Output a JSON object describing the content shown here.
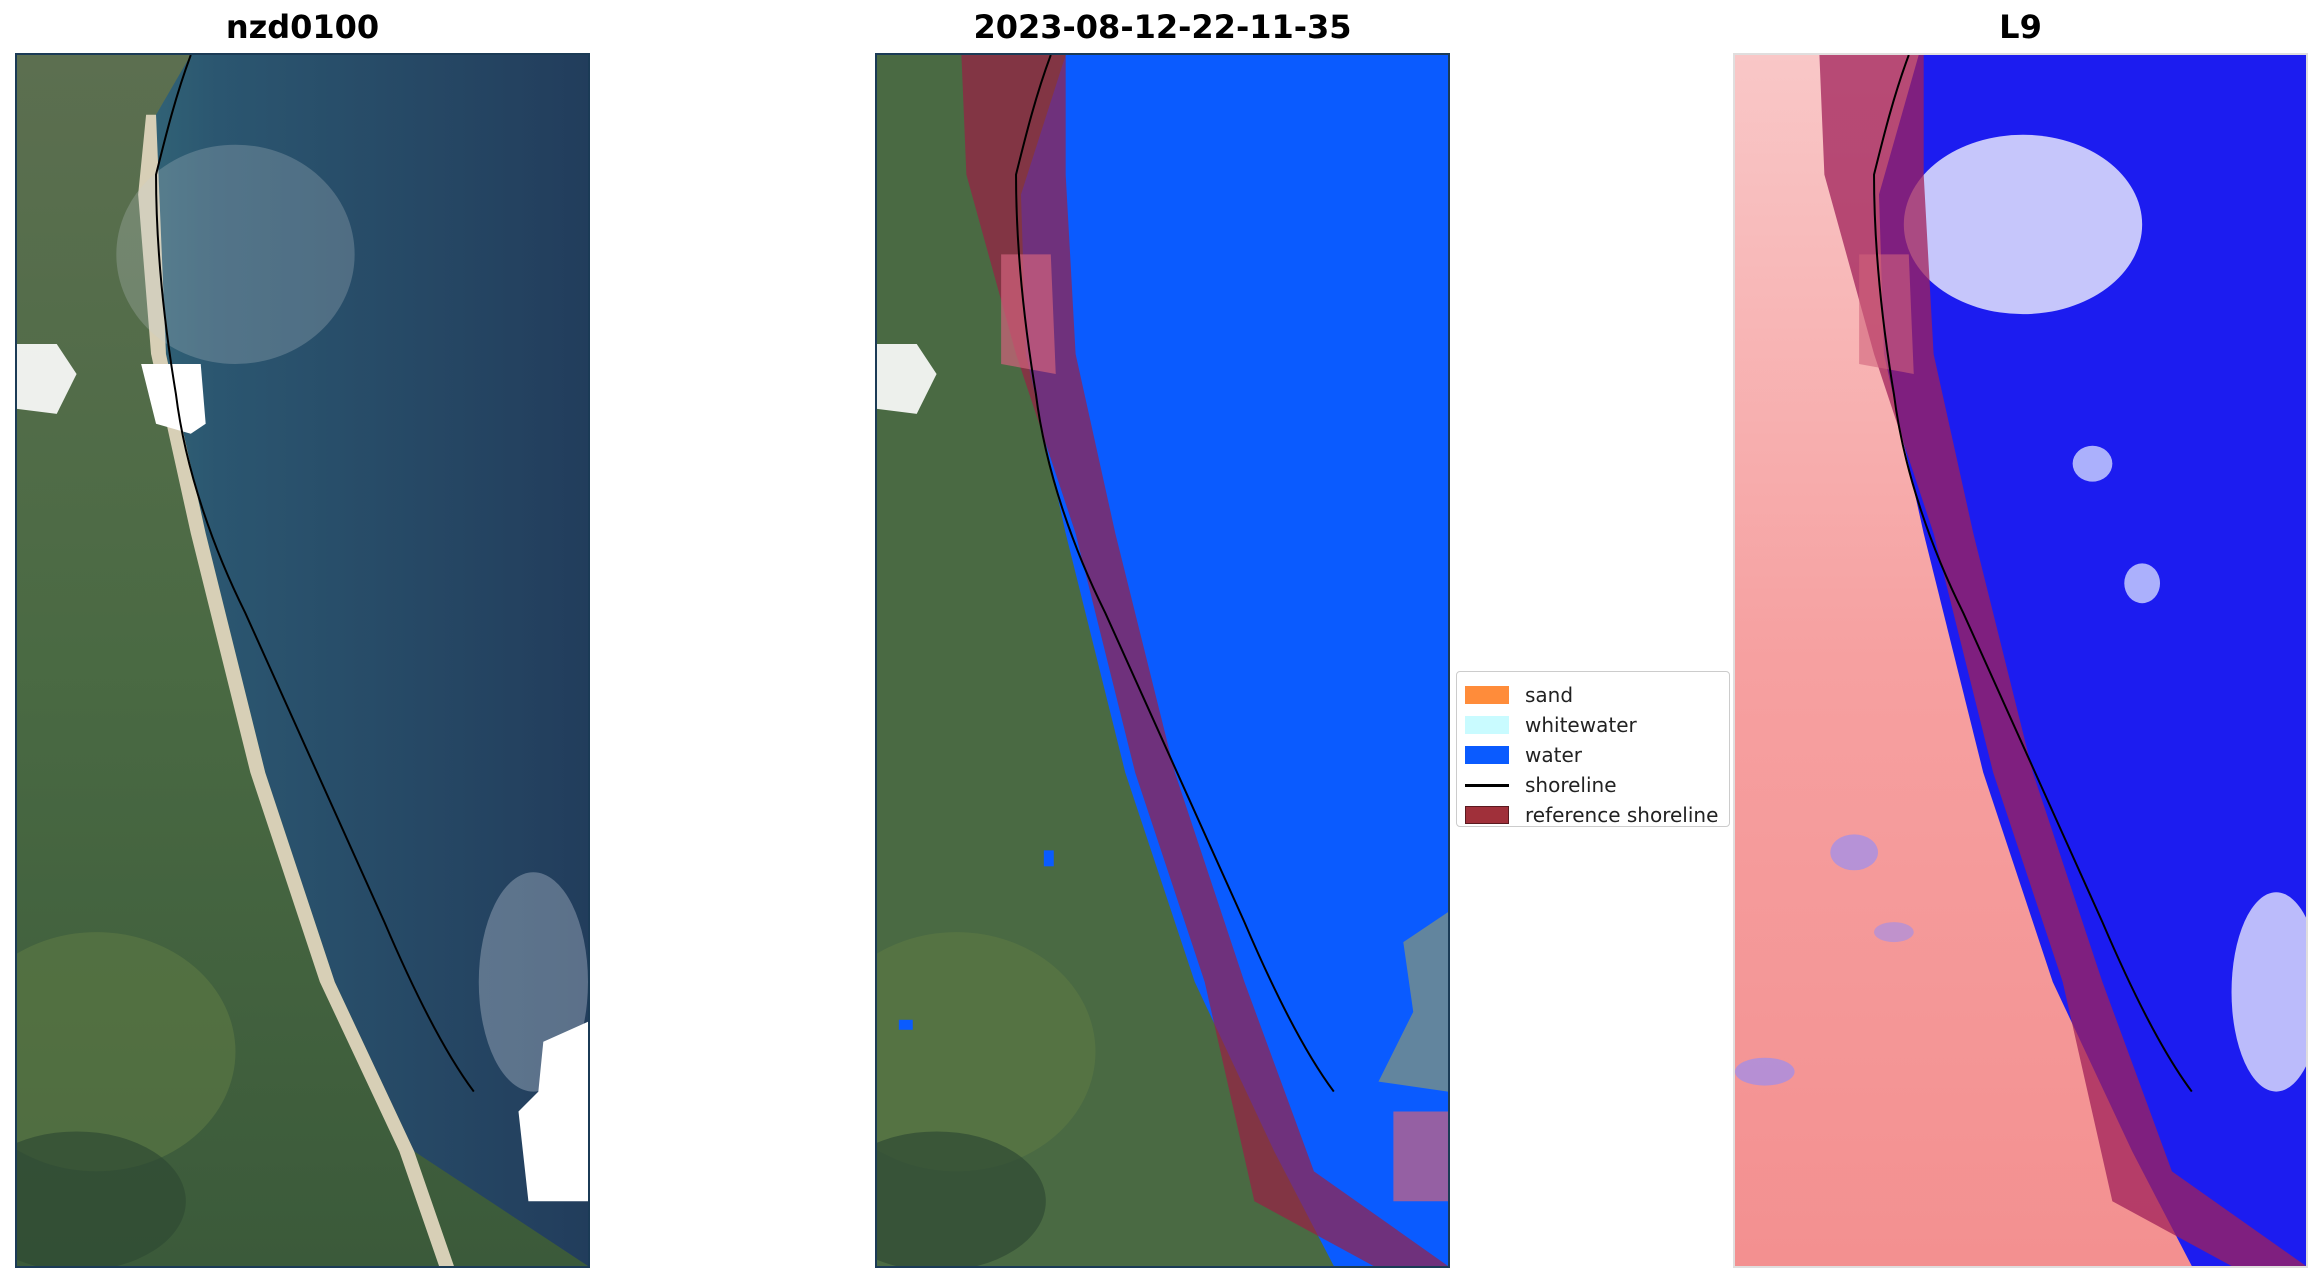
{
  "panels": [
    {
      "title": "nzd0100",
      "kind": "rgb"
    },
    {
      "title": "2023-08-12-22-11-35",
      "kind": "classified"
    },
    {
      "title": "L9",
      "kind": "index"
    }
  ],
  "legend": {
    "entries": [
      {
        "label": "sand",
        "color": "#ff8c3a",
        "type": "patch"
      },
      {
        "label": "whitewater",
        "color": "#c9fbff",
        "type": "patch"
      },
      {
        "label": "water",
        "color": "#0a5bff",
        "type": "patch"
      },
      {
        "label": "shoreline",
        "color": "#000000",
        "type": "line"
      },
      {
        "label": "reference shoreline",
        "color": "#a0303a",
        "type": "patch"
      }
    ]
  },
  "colors": {
    "land": "#4f6a45",
    "land_dark": "#34482f",
    "ocean": "#23405f",
    "ocean_shallow": "#3f7a82",
    "sand_beach": "#d7cfb6",
    "cloud": "#ffffff",
    "water_class": "#0a5bff",
    "reference_band": "#9a1f45",
    "index_land": "#f58a8a",
    "index_water": "#2020f0",
    "panel_border": "#1b3b56"
  }
}
